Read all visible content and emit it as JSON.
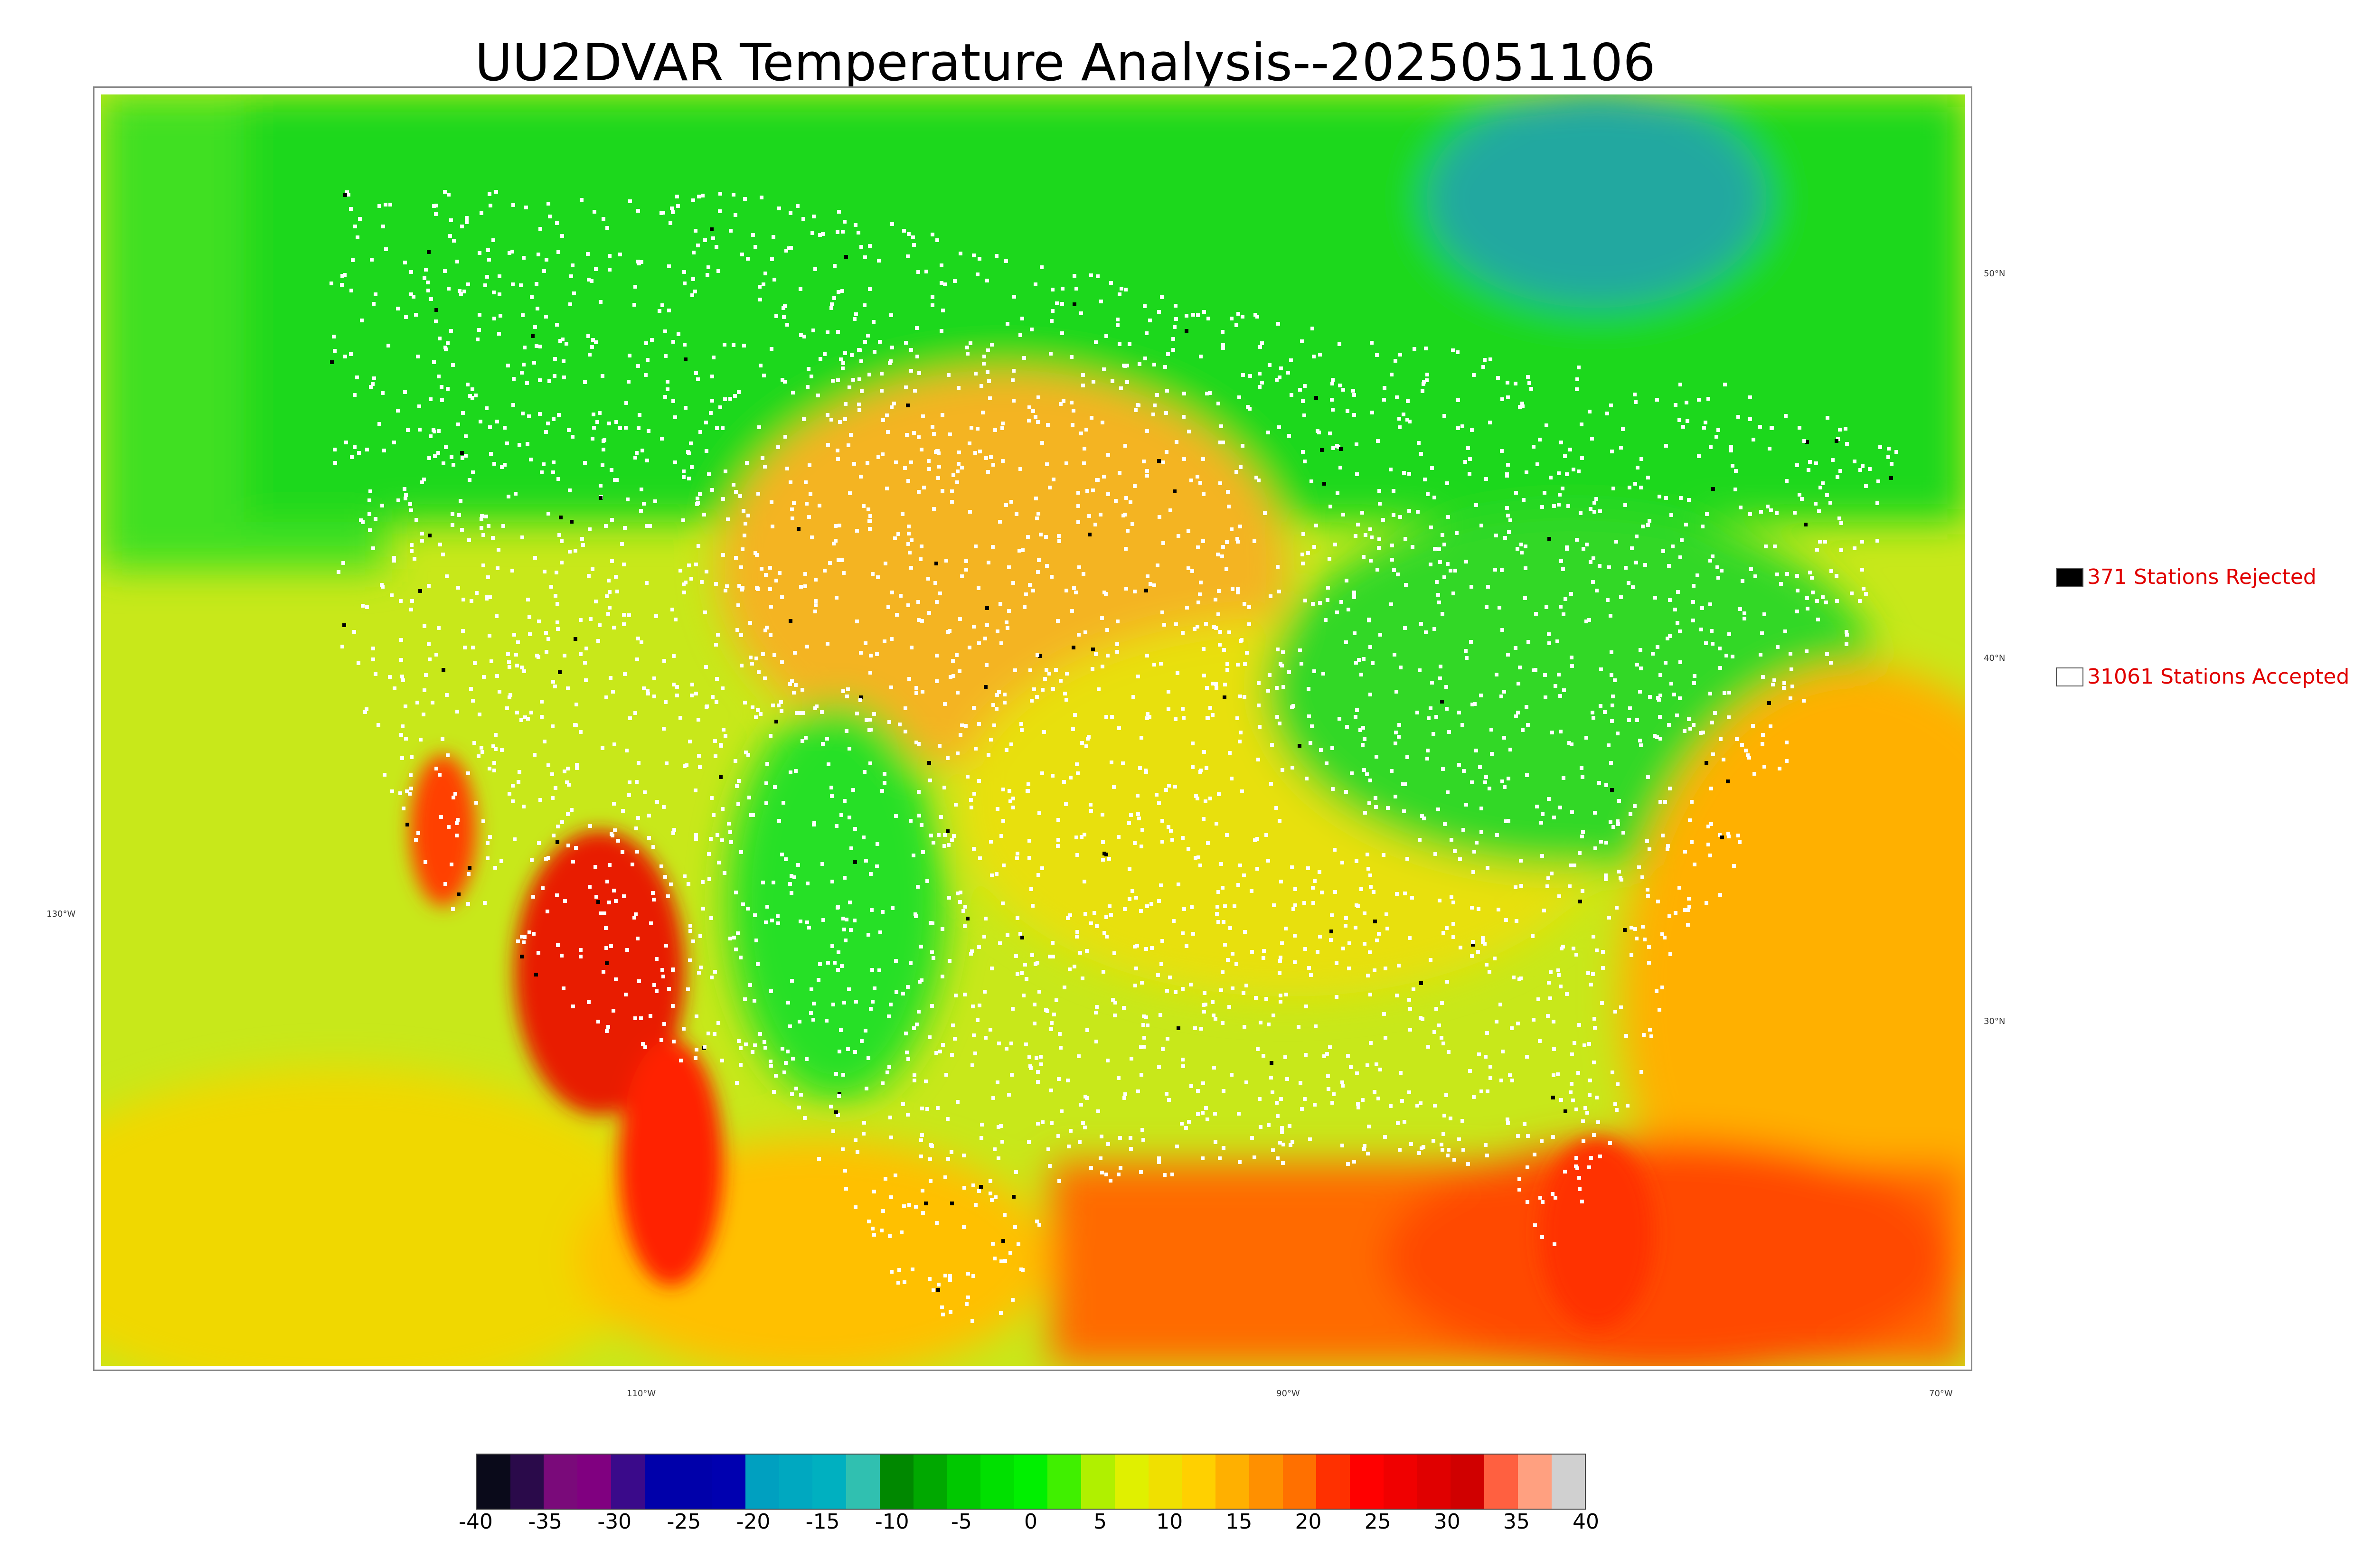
{
  "title": "UU2DVAR Temperature Analysis--2025051106",
  "map": {
    "longitude_labels": [
      "130°W",
      "110°W",
      "90°W",
      "70°W"
    ],
    "latitude_labels": [
      "50°N",
      "40°N",
      "30°N"
    ],
    "colors": {
      "ocean_west": "#c8e81a",
      "ocean_gulf": "#ff6a00",
      "atlantic": "#ffb000",
      "canada": "#1ed81e",
      "hudson": "#20a8a0",
      "plains": "#f4b420",
      "southwest_hot": "#e81e00",
      "rockies": "#28e028",
      "station_accepted": "#ffffff",
      "station_rejected": "#000000"
    }
  },
  "legend": {
    "rejected": {
      "label": "371 Stations Rejected",
      "swatch": "#000000"
    },
    "accepted": {
      "label": "31061 Stations Accepted",
      "swatch": "#ffffff"
    }
  },
  "colorbar": {
    "tick_labels": [
      "-40",
      "-35",
      "-30",
      "-25",
      "-20",
      "-15",
      "-10",
      "-5",
      "0",
      "5",
      "10",
      "15",
      "20",
      "25",
      "30",
      "35",
      "40"
    ],
    "min": -40,
    "max": 40,
    "colors": [
      "#0a0a1a",
      "#2a0a4a",
      "#7a0a7a",
      "#800080",
      "#3a0a8a",
      "#0000aa",
      "#0000aa",
      "#0000b0",
      "#00a0c0",
      "#00a8c0",
      "#00b0c0",
      "#30c0b0",
      "#008800",
      "#00a800",
      "#00c800",
      "#00e000",
      "#00f000",
      "#40f000",
      "#b0f000",
      "#e0f000",
      "#f0e000",
      "#ffd000",
      "#ffb000",
      "#ff9000",
      "#ff7000",
      "#ff3000",
      "#ff0000",
      "#f00000",
      "#e00000",
      "#d00000",
      "#ff6040",
      "#ffa080",
      "#d0d0d0"
    ]
  }
}
